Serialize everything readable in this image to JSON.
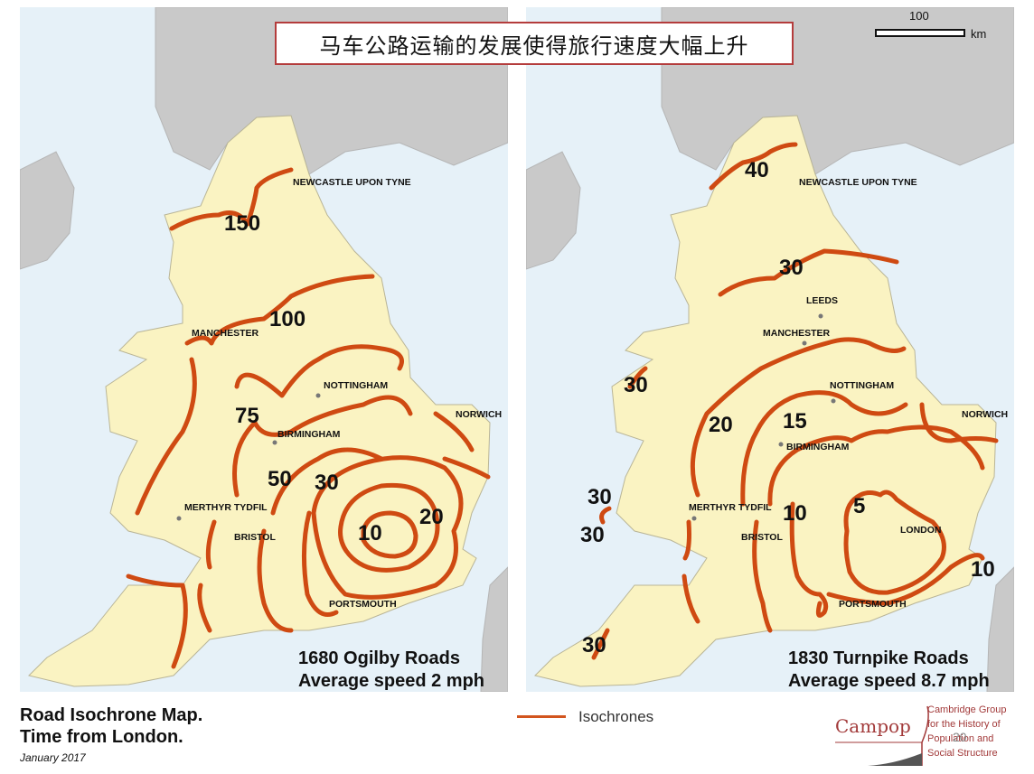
{
  "title": "马车公路运输的发展使得旅行速度大幅上升",
  "scale": {
    "value": "100",
    "unit": "km"
  },
  "colors": {
    "isochrone": "#cf4a12",
    "land": "#faf3c2",
    "sea": "#e6f1f8",
    "foreign": "#c9c9c9"
  },
  "maps": [
    {
      "caption_line1": "1680 Ogilby Roads",
      "caption_line2": "Average speed 2 mph",
      "cities": [
        "NEWCASTLE UPON TYNE",
        "MANCHESTER",
        "NOTTINGHAM",
        "NORWICH",
        "BIRMINGHAM",
        "MERTHYR TYDFIL",
        "BRISTOL",
        "PORTSMOUTH"
      ],
      "isochrone_labels": [
        "150",
        "100",
        "75",
        "50",
        "30",
        "20",
        "10"
      ]
    },
    {
      "caption_line1": "1830 Turnpike Roads",
      "caption_line2": "Average speed 8.7 mph",
      "cities": [
        "NEWCASTLE UPON TYNE",
        "LEEDS",
        "MANCHESTER",
        "NOTTINGHAM",
        "NORWICH",
        "BIRMINGHAM",
        "MERTHYR TYDFIL",
        "BRISTOL",
        "LONDON",
        "PORTSMOUTH"
      ],
      "isochrone_labels": [
        "40",
        "30",
        "30",
        "20",
        "15",
        "10",
        "5",
        "30",
        "30",
        "30",
        "10"
      ]
    }
  ],
  "footer": {
    "title_line1": "Road Isochrone Map.",
    "title_line2": "Time from London.",
    "date": "January 2017"
  },
  "legend": {
    "label": "Isochrones"
  },
  "logo": {
    "name": "Campop",
    "org_line1": "Cambridge Group",
    "org_line2": "for the History of",
    "org_line3": "Population and",
    "org_line4": "Social Structure",
    "page": "20"
  }
}
